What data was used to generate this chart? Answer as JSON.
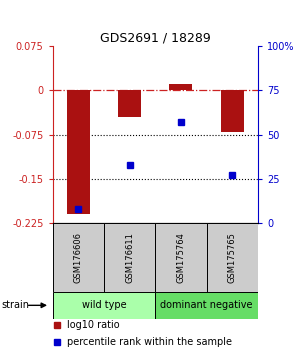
{
  "title": "GDS2691 / 18289",
  "samples": [
    "GSM176606",
    "GSM176611",
    "GSM175764",
    "GSM175765"
  ],
  "groups": [
    {
      "name": "wild type",
      "color": "#aaffaa",
      "samples": [
        0,
        1
      ]
    },
    {
      "name": "dominant negative",
      "color": "#66dd66",
      "samples": [
        2,
        3
      ]
    }
  ],
  "log10_ratio": [
    -0.21,
    -0.045,
    0.01,
    -0.07
  ],
  "percentile_rank": [
    8,
    33,
    57,
    27
  ],
  "ylim_left": [
    -0.225,
    0.075
  ],
  "ylim_right": [
    0,
    100
  ],
  "yticks_left": [
    0.075,
    0,
    -0.075,
    -0.15,
    -0.225
  ],
  "yticks_right": [
    100,
    75,
    50,
    25,
    0
  ],
  "bar_color": "#aa1111",
  "dot_color": "#0000cc",
  "bar_width": 0.45,
  "legend_bar_label": "log10 ratio",
  "legend_dot_label": "percentile rank within the sample",
  "background_table": "#cccccc",
  "group_light_green": "#bbffbb",
  "group_dark_green": "#55cc55"
}
